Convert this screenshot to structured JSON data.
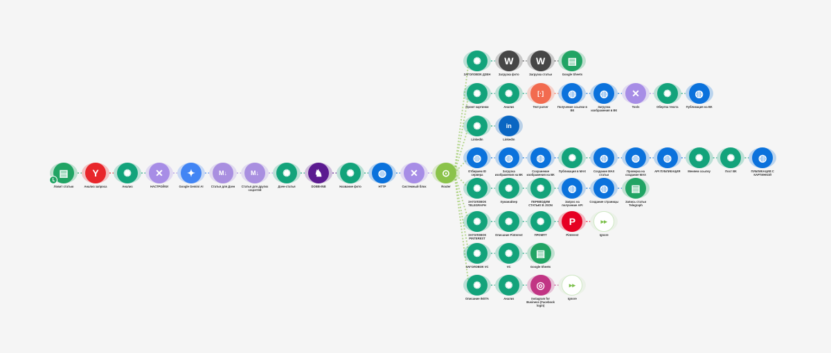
{
  "app_colors": {
    "openai": "#13a37b",
    "wordpress": "#464646",
    "sheets": "#21a464",
    "http": "#0b72dc",
    "tools": "#a78de6",
    "textparser": "#f26b4f",
    "linkedin": "#0a66c2",
    "pinterest": "#e60023",
    "instagram": "#c13584",
    "ignore": "#ffffff",
    "yandex": "#e8262b",
    "gemini": "#4285f4",
    "markdown": "#a98fe0",
    "dino": "#5b1a90",
    "router": "#8bc34a"
  },
  "app_icons": {
    "openai": "openai-icon",
    "wordpress": "wordpress-icon",
    "sheets": "google-sheets-icon",
    "http": "globe-icon",
    "tools": "tools-icon",
    "textparser": "text-parser-icon",
    "linkedin": "linkedin-icon",
    "pinterest": "pinterest-icon",
    "instagram": "instagram-icon",
    "ignore": "ignore-icon",
    "yandex": "yandex-icon",
    "gemini": "gemini-icon",
    "markdown": "markdown-icon",
    "dino": "dino-icon",
    "router": "router-icon"
  },
  "main_chain": [
    {
      "app": "sheets",
      "label": "Ловит статью"
    },
    {
      "app": "yandex",
      "label": "Анализ запроса"
    },
    {
      "app": "openai",
      "label": "Анализ"
    },
    {
      "app": "tools",
      "label": "НАСТРОЙКИ"
    },
    {
      "app": "gemini",
      "label": "Google Gemini AI"
    },
    {
      "app": "markdown",
      "label": "Статья для Дзен"
    },
    {
      "app": "markdown",
      "label": "Статья для других соцсетей"
    },
    {
      "app": "openai",
      "label": "Дзен-статья"
    },
    {
      "app": "dino",
      "label": "DOBB-INB"
    },
    {
      "app": "openai",
      "label": "Название фото"
    },
    {
      "app": "http",
      "label": "HTTP"
    },
    {
      "app": "tools",
      "label": "Системный блок"
    },
    {
      "app": "router",
      "label": "Router"
    }
  ],
  "branches": [
    [
      {
        "app": "openai",
        "label": "ЗАГОЛОВОК ДЗЕН"
      },
      {
        "app": "wordpress",
        "label": "Загрузка фото"
      },
      {
        "app": "wordpress",
        "label": "Загрузка статьи"
      },
      {
        "app": "sheets",
        "label": "Google Sheets"
      }
    ],
    [
      {
        "app": "openai",
        "label": "Промт картинки"
      },
      {
        "app": "openai",
        "label": "Анализ"
      },
      {
        "app": "textparser",
        "label": "Text parser"
      },
      {
        "app": "http",
        "label": "Получение ссылки в ВК"
      },
      {
        "app": "http",
        "label": "Загрузка изображения в ВК"
      },
      {
        "app": "tools",
        "label": "Tools"
      },
      {
        "app": "openai",
        "label": "Обертка текста"
      },
      {
        "app": "http",
        "label": "Публикация на ВК"
      }
    ],
    [
      {
        "app": "openai",
        "label": "LinkedIn"
      },
      {
        "app": "linkedin",
        "label": "LinkedIn"
      }
    ],
    [
      {
        "app": "http",
        "label": "Отбираем ID сервера"
      },
      {
        "app": "http",
        "label": "Загрузка изображения на ВК"
      },
      {
        "app": "http",
        "label": "Сохранение изображения на ВК"
      },
      {
        "app": "openai",
        "label": "Публикация в МАХ"
      },
      {
        "app": "http",
        "label": "Создание МАХ статьи"
      },
      {
        "app": "http",
        "label": "Проверка на создание МАХ"
      },
      {
        "app": "http",
        "label": "API ПУБЛИКАЦИЯ"
      },
      {
        "app": "openai",
        "label": "Меняем ссылку"
      },
      {
        "app": "openai",
        "label": "Пост ВК"
      },
      {
        "app": "http",
        "label": "ПУБЛИКАЦИЯ С КАРТИНКОЙ"
      }
    ],
    [
      {
        "app": "openai",
        "label": "ЗАГОЛОВОК TELEGRAPH"
      },
      {
        "app": "openai",
        "label": "Хуманайзер"
      },
      {
        "app": "openai",
        "label": "ПЕРЕВОДИМ СТАТЬЮ В JSON"
      },
      {
        "app": "http",
        "label": "Запрос на получение API"
      },
      {
        "app": "http",
        "label": "Создание страницы"
      },
      {
        "app": "sheets",
        "label": "Запись статьи Telegraph"
      }
    ],
    [
      {
        "app": "openai",
        "label": "ЗАГОЛОВОК PINTEREST"
      },
      {
        "app": "openai",
        "label": "Описание Pinterest"
      },
      {
        "app": "openai",
        "label": "ПРОМПТ"
      },
      {
        "app": "pinterest",
        "label": "Pinterest"
      },
      {
        "app": "ignore",
        "label": "Ignore"
      }
    ],
    [
      {
        "app": "openai",
        "label": "ЗАГОЛОВОК VC"
      },
      {
        "app": "openai",
        "label": "VC"
      },
      {
        "app": "sheets",
        "label": "Google Sheets"
      }
    ],
    [
      {
        "app": "openai",
        "label": "Описание INSTA"
      },
      {
        "app": "openai",
        "label": "Анализ"
      },
      {
        "app": "instagram",
        "label": "Instagram for Business (Facebook login)"
      },
      {
        "app": "ignore",
        "label": "Ignore"
      }
    ]
  ]
}
